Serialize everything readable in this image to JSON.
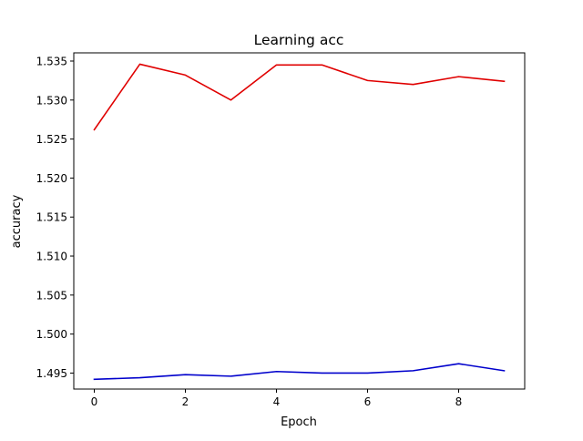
{
  "chart_data": {
    "type": "line",
    "title": "Learning acc",
    "xlabel": "Epoch",
    "ylabel": "accuracy",
    "x": [
      0,
      1,
      2,
      3,
      4,
      5,
      6,
      7,
      8,
      9
    ],
    "xlim": [
      -0.45,
      9.45
    ],
    "ylim": [
      1.49295,
      1.53605
    ],
    "xticks": [
      0,
      2,
      4,
      6,
      8
    ],
    "yticks": [
      1.495,
      1.5,
      1.505,
      1.51,
      1.515,
      1.52,
      1.525,
      1.53,
      1.535
    ],
    "ytick_labels": [
      "1.495",
      "1.500",
      "1.505",
      "1.510",
      "1.515",
      "1.520",
      "1.525",
      "1.530",
      "1.535"
    ],
    "grid": false,
    "legend": "none",
    "series": [
      {
        "color": "#e00000",
        "values": [
          1.5262,
          1.5346,
          1.5332,
          1.53,
          1.5345,
          1.5345,
          1.5325,
          1.532,
          1.533,
          1.5324
        ]
      },
      {
        "color": "#0000cc",
        "values": [
          1.4942,
          1.4944,
          1.4948,
          1.4946,
          1.4952,
          1.495,
          1.495,
          1.4953,
          1.4962,
          1.4953
        ]
      }
    ]
  }
}
